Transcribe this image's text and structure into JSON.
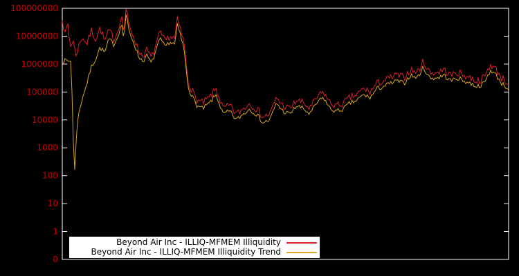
{
  "page": {
    "background": "#000000"
  },
  "chart_data": {
    "type": "line",
    "title": "",
    "background": "#000000",
    "border_color": "#ffffff",
    "x_axis": {
      "label": "",
      "tick_labels": []
    },
    "y_axis": {
      "label": "",
      "scale": "log",
      "tick_color": "#cc0000",
      "tick_labels_bottom_to_top": [
        "0",
        "1",
        "10",
        "100",
        "1000",
        "10000",
        "100000",
        "1000000",
        "10000000",
        "100000000"
      ]
    },
    "legend": {
      "position": "bottom-center",
      "background": "#ffffff",
      "text_color": "#000000"
    },
    "noise_seed": 7,
    "series": [
      {
        "id": "illiquidity-line",
        "name": "Beyond Air Inc - ILLIQ-MFMEM Illiquidity",
        "color": "#e01f2d",
        "noise_amplitude_log10": 0.14,
        "points": [
          [
            0.0,
            50000000
          ],
          [
            0.006,
            10000000
          ],
          [
            0.012,
            32000000
          ],
          [
            0.018,
            4000000
          ],
          [
            0.024,
            7900000
          ],
          [
            0.03,
            2000000
          ],
          [
            0.036,
            4000000
          ],
          [
            0.045,
            10000000
          ],
          [
            0.055,
            5000000
          ],
          [
            0.065,
            16000000
          ],
          [
            0.075,
            7900000
          ],
          [
            0.085,
            20000000
          ],
          [
            0.095,
            6300000
          ],
          [
            0.105,
            16000000
          ],
          [
            0.115,
            7900000
          ],
          [
            0.125,
            16000000
          ],
          [
            0.132,
            63000000
          ],
          [
            0.138,
            13000000
          ],
          [
            0.143,
            100000000
          ],
          [
            0.15,
            20000000
          ],
          [
            0.16,
            10000000
          ],
          [
            0.17,
            3200000
          ],
          [
            0.18,
            2000000
          ],
          [
            0.19,
            3200000
          ],
          [
            0.2,
            1600000
          ],
          [
            0.21,
            5000000
          ],
          [
            0.22,
            13000000
          ],
          [
            0.23,
            6300000
          ],
          [
            0.24,
            10000000
          ],
          [
            0.252,
            7900000
          ],
          [
            0.258,
            40000000
          ],
          [
            0.265,
            16000000
          ],
          [
            0.272,
            6300000
          ],
          [
            0.282,
            250000
          ],
          [
            0.292,
            100000
          ],
          [
            0.302,
            50000
          ],
          [
            0.315,
            40000
          ],
          [
            0.33,
            63000
          ],
          [
            0.345,
            130000
          ],
          [
            0.36,
            25000
          ],
          [
            0.375,
            32000
          ],
          [
            0.39,
            16000
          ],
          [
            0.405,
            25000
          ],
          [
            0.42,
            40000
          ],
          [
            0.435,
            25000
          ],
          [
            0.45,
            13000
          ],
          [
            0.465,
            16000
          ],
          [
            0.48,
            63000
          ],
          [
            0.495,
            32000
          ],
          [
            0.51,
            25000
          ],
          [
            0.525,
            50000
          ],
          [
            0.54,
            40000
          ],
          [
            0.555,
            25000
          ],
          [
            0.57,
            63000
          ],
          [
            0.585,
            100000
          ],
          [
            0.6,
            40000
          ],
          [
            0.615,
            32000
          ],
          [
            0.63,
            40000
          ],
          [
            0.645,
            63000
          ],
          [
            0.66,
            79000
          ],
          [
            0.675,
            130000
          ],
          [
            0.69,
            100000
          ],
          [
            0.705,
            200000
          ],
          [
            0.72,
            250000
          ],
          [
            0.735,
            320000
          ],
          [
            0.75,
            400000
          ],
          [
            0.765,
            320000
          ],
          [
            0.78,
            630000
          ],
          [
            0.795,
            500000
          ],
          [
            0.81,
            1300000
          ],
          [
            0.818,
            630000
          ],
          [
            0.825,
            500000
          ],
          [
            0.84,
            500000
          ],
          [
            0.855,
            630000
          ],
          [
            0.87,
            400000
          ],
          [
            0.885,
            500000
          ],
          [
            0.9,
            400000
          ],
          [
            0.915,
            320000
          ],
          [
            0.93,
            250000
          ],
          [
            0.945,
            320000
          ],
          [
            0.96,
            1000000
          ],
          [
            0.972,
            630000
          ],
          [
            0.985,
            320000
          ],
          [
            1.0,
            200000
          ]
        ]
      },
      {
        "id": "illiquidity-trend-line",
        "name": "Beyond Air Inc - ILLIQ-MFMEM Illiquidity Trend",
        "color": "#daa520",
        "noise_amplitude_log10": 0.09,
        "points": [
          [
            0.0,
            1300000
          ],
          [
            0.02,
            1300000
          ],
          [
            0.027,
            71
          ],
          [
            0.033,
            7900
          ],
          [
            0.045,
            63000
          ],
          [
            0.055,
            200000
          ],
          [
            0.065,
            790000
          ],
          [
            0.075,
            1600000
          ],
          [
            0.085,
            4000000
          ],
          [
            0.095,
            2500000
          ],
          [
            0.105,
            7900000
          ],
          [
            0.115,
            5000000
          ],
          [
            0.125,
            10000000
          ],
          [
            0.132,
            32000000
          ],
          [
            0.138,
            7900000
          ],
          [
            0.143,
            63000000
          ],
          [
            0.15,
            13000000
          ],
          [
            0.16,
            6300000
          ],
          [
            0.17,
            2000000
          ],
          [
            0.18,
            1300000
          ],
          [
            0.19,
            2000000
          ],
          [
            0.2,
            1000000
          ],
          [
            0.21,
            3200000
          ],
          [
            0.22,
            7900000
          ],
          [
            0.23,
            4000000
          ],
          [
            0.24,
            6300000
          ],
          [
            0.252,
            5000000
          ],
          [
            0.258,
            25000000
          ],
          [
            0.265,
            10000000
          ],
          [
            0.272,
            4000000
          ],
          [
            0.282,
            160000
          ],
          [
            0.292,
            63000
          ],
          [
            0.302,
            32000
          ],
          [
            0.315,
            25000
          ],
          [
            0.33,
            40000
          ],
          [
            0.345,
            79000
          ],
          [
            0.36,
            16000
          ],
          [
            0.375,
            20000
          ],
          [
            0.39,
            10000
          ],
          [
            0.405,
            16000
          ],
          [
            0.42,
            25000
          ],
          [
            0.435,
            16000
          ],
          [
            0.45,
            7900
          ],
          [
            0.465,
            10000
          ],
          [
            0.48,
            40000
          ],
          [
            0.495,
            20000
          ],
          [
            0.51,
            16000
          ],
          [
            0.525,
            32000
          ],
          [
            0.54,
            25000
          ],
          [
            0.555,
            16000
          ],
          [
            0.57,
            40000
          ],
          [
            0.585,
            63000
          ],
          [
            0.6,
            25000
          ],
          [
            0.615,
            20000
          ],
          [
            0.63,
            25000
          ],
          [
            0.645,
            40000
          ],
          [
            0.66,
            50000
          ],
          [
            0.675,
            79000
          ],
          [
            0.69,
            63000
          ],
          [
            0.705,
            130000
          ],
          [
            0.72,
            160000
          ],
          [
            0.735,
            200000
          ],
          [
            0.75,
            250000
          ],
          [
            0.765,
            200000
          ],
          [
            0.78,
            400000
          ],
          [
            0.795,
            320000
          ],
          [
            0.81,
            790000
          ],
          [
            0.818,
            400000
          ],
          [
            0.825,
            320000
          ],
          [
            0.84,
            320000
          ],
          [
            0.855,
            400000
          ],
          [
            0.87,
            250000
          ],
          [
            0.885,
            320000
          ],
          [
            0.9,
            250000
          ],
          [
            0.915,
            200000
          ],
          [
            0.93,
            160000
          ],
          [
            0.945,
            200000
          ],
          [
            0.96,
            630000
          ],
          [
            0.972,
            400000
          ],
          [
            0.985,
            200000
          ],
          [
            1.0,
            130000
          ]
        ]
      }
    ]
  }
}
